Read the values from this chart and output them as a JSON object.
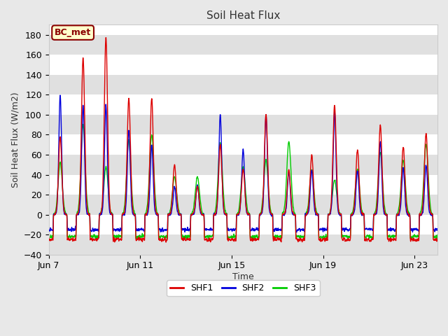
{
  "title": "Soil Heat Flux",
  "ylabel": "Soil Heat Flux (W/m2)",
  "xlabel": "Time",
  "ylim": [
    -40,
    190
  ],
  "yticks": [
    -40,
    -20,
    0,
    20,
    40,
    60,
    80,
    100,
    120,
    140,
    160,
    180
  ],
  "fig_bg_color": "#e8e8e8",
  "plot_bg_color": "#ffffff",
  "band_color": "#e0e0e0",
  "line_colors": {
    "SHF1": "#dd0000",
    "SHF2": "#0000dd",
    "SHF3": "#00cc00"
  },
  "line_widths": {
    "SHF1": 1.0,
    "SHF2": 1.0,
    "SHF3": 1.0
  },
  "bc_met_label": "BC_met",
  "bc_met_bg": "#ffffcc",
  "bc_met_border": "#8b0000",
  "n_days": 17,
  "points_per_day": 144,
  "x_tick_days": [
    0,
    4,
    8,
    12,
    16
  ],
  "x_tick_labels": [
    "Jun 7",
    "Jun 11",
    "Jun 15",
    "Jun 19",
    "Jun 23"
  ],
  "shf1_peaks": [
    78,
    157,
    178,
    117,
    117,
    50,
    28,
    70,
    45,
    100,
    45,
    60,
    109,
    65,
    90,
    68,
    82
  ],
  "shf2_peaks": [
    120,
    110,
    110,
    85,
    70,
    28,
    30,
    100,
    65,
    100,
    43,
    45,
    103,
    44,
    74,
    47,
    50
  ],
  "shf3_peaks": [
    52,
    90,
    48,
    75,
    80,
    38,
    38,
    72,
    48,
    55,
    73,
    45,
    35,
    45,
    62,
    55,
    70
  ],
  "shf1_night": -25,
  "shf2_night": -15,
  "shf3_night": -22
}
